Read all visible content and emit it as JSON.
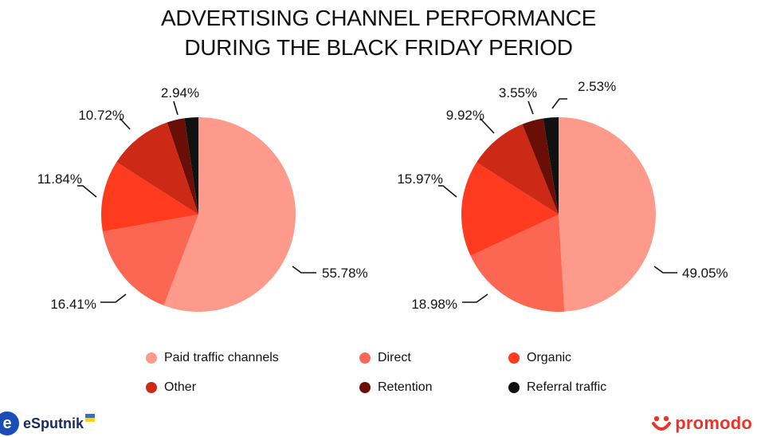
{
  "chart_data": {
    "type": "pie",
    "title_lines": [
      "ADVERTISING CHANNEL PERFORMANCE",
      "DURING THE BLACK FRIDAY PERIOD"
    ],
    "categories": [
      "Paid traffic channels",
      "Direct",
      "Organic",
      "Other",
      "Retention",
      "Referral traffic"
    ],
    "colors": [
      "#fd9a8b",
      "#fb6752",
      "#fe3a1f",
      "#cc2a17",
      "#6a0e08",
      "#111111"
    ],
    "legend_position": "bottom",
    "series": [
      {
        "name": "left",
        "values": [
          55.78,
          16.41,
          11.84,
          10.72,
          2.94,
          2.28
        ],
        "labels": [
          "55.78%",
          "16.41%",
          "11.84%",
          "10.72%",
          "2.94%",
          null
        ]
      },
      {
        "name": "right",
        "values": [
          49.05,
          18.98,
          15.97,
          9.92,
          3.55,
          2.53
        ],
        "labels": [
          "49.05%",
          "18.98%",
          "15.97%",
          "9.92%",
          "3.55%",
          "2.53%"
        ]
      }
    ]
  },
  "brands": {
    "left_mark": "e",
    "left_name": "eSputnik",
    "flag_colors": [
      "#2f6fd6",
      "#f5cf2a"
    ],
    "right_name": "promodo",
    "right_color": "#e8342a"
  }
}
